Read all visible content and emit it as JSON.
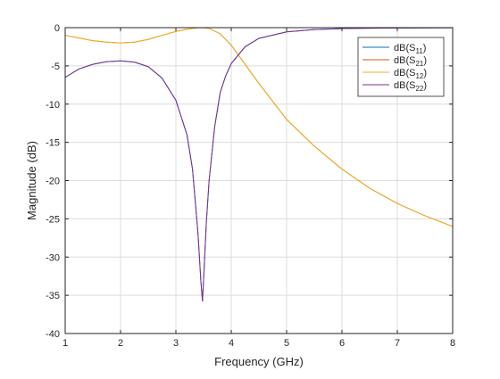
{
  "chart_data": {
    "type": "line",
    "title": "",
    "xlabel": "Frequency (GHz)",
    "ylabel": "Magnitude (dB)",
    "xlim": [
      1,
      8
    ],
    "ylim": [
      -40,
      0
    ],
    "xticks": [
      1,
      2,
      3,
      4,
      5,
      6,
      7,
      8
    ],
    "yticks": [
      0,
      -5,
      -10,
      -15,
      -20,
      -25,
      -30,
      -35,
      -40
    ],
    "grid": true,
    "legend_position": "top-right",
    "series": [
      {
        "name_base": "dB(S",
        "name_sub": "11",
        "name_end": ")",
        "color": "#0072BD",
        "x": [
          1.0,
          1.25,
          1.5,
          1.75,
          2.0,
          2.25,
          2.5,
          2.75,
          3.0,
          3.2,
          3.3,
          3.4,
          3.45,
          3.48,
          3.5,
          3.55,
          3.6,
          3.7,
          3.8,
          3.9,
          4.0,
          4.25,
          4.5,
          5.0,
          5.5,
          6.0,
          6.5,
          7.0,
          7.5,
          8.0
        ],
        "y": [
          -6.5,
          -5.4,
          -4.8,
          -4.45,
          -4.35,
          -4.5,
          -5.1,
          -6.6,
          -9.5,
          -14.0,
          -18.5,
          -27.0,
          -33.0,
          -35.8,
          -33.0,
          -25.5,
          -20.0,
          -13.0,
          -8.5,
          -6.3,
          -4.7,
          -2.5,
          -1.4,
          -0.55,
          -0.25,
          -0.12,
          -0.07,
          -0.04,
          -0.03,
          -0.02
        ]
      },
      {
        "name_base": "dB(S",
        "name_sub": "21",
        "name_end": ")",
        "color": "#D95319",
        "x": [
          1.0,
          1.25,
          1.5,
          1.75,
          2.0,
          2.25,
          2.5,
          2.75,
          3.0,
          3.2,
          3.4,
          3.5,
          3.6,
          3.8,
          4.0,
          4.25,
          4.5,
          5.0,
          5.5,
          6.0,
          6.5,
          7.0,
          7.5,
          8.0
        ],
        "y": [
          -1.0,
          -1.35,
          -1.7,
          -1.9,
          -2.0,
          -1.9,
          -1.55,
          -1.0,
          -0.5,
          -0.2,
          -0.02,
          0.0,
          -0.1,
          -0.8,
          -2.3,
          -4.8,
          -7.3,
          -12.0,
          -15.5,
          -18.5,
          -21.0,
          -23.0,
          -24.6,
          -26.0
        ]
      },
      {
        "name_base": "dB(S",
        "name_sub": "12",
        "name_end": ")",
        "color": "#EDB120",
        "x": [
          1.0,
          1.25,
          1.5,
          1.75,
          2.0,
          2.25,
          2.5,
          2.75,
          3.0,
          3.2,
          3.4,
          3.5,
          3.6,
          3.8,
          4.0,
          4.25,
          4.5,
          5.0,
          5.5,
          6.0,
          6.5,
          7.0,
          7.5,
          8.0
        ],
        "y": [
          -1.0,
          -1.35,
          -1.7,
          -1.9,
          -2.0,
          -1.9,
          -1.55,
          -1.0,
          -0.5,
          -0.2,
          -0.02,
          0.0,
          -0.1,
          -0.8,
          -2.3,
          -4.8,
          -7.3,
          -12.0,
          -15.5,
          -18.5,
          -21.0,
          -23.0,
          -24.6,
          -26.0
        ]
      },
      {
        "name_base": "dB(S",
        "name_sub": "22",
        "name_end": ")",
        "color": "#7E2F8E",
        "x": [
          1.0,
          1.25,
          1.5,
          1.75,
          2.0,
          2.25,
          2.5,
          2.75,
          3.0,
          3.2,
          3.3,
          3.4,
          3.45,
          3.48,
          3.5,
          3.55,
          3.6,
          3.7,
          3.8,
          3.9,
          4.0,
          4.25,
          4.5,
          5.0,
          5.5,
          6.0,
          6.5,
          7.0,
          7.5,
          8.0
        ],
        "y": [
          -6.5,
          -5.4,
          -4.8,
          -4.45,
          -4.35,
          -4.5,
          -5.1,
          -6.6,
          -9.5,
          -14.0,
          -18.5,
          -27.0,
          -33.0,
          -35.8,
          -33.0,
          -25.5,
          -20.0,
          -13.0,
          -8.5,
          -6.3,
          -4.7,
          -2.5,
          -1.4,
          -0.55,
          -0.25,
          -0.12,
          -0.07,
          -0.04,
          -0.03,
          -0.02
        ]
      }
    ]
  }
}
